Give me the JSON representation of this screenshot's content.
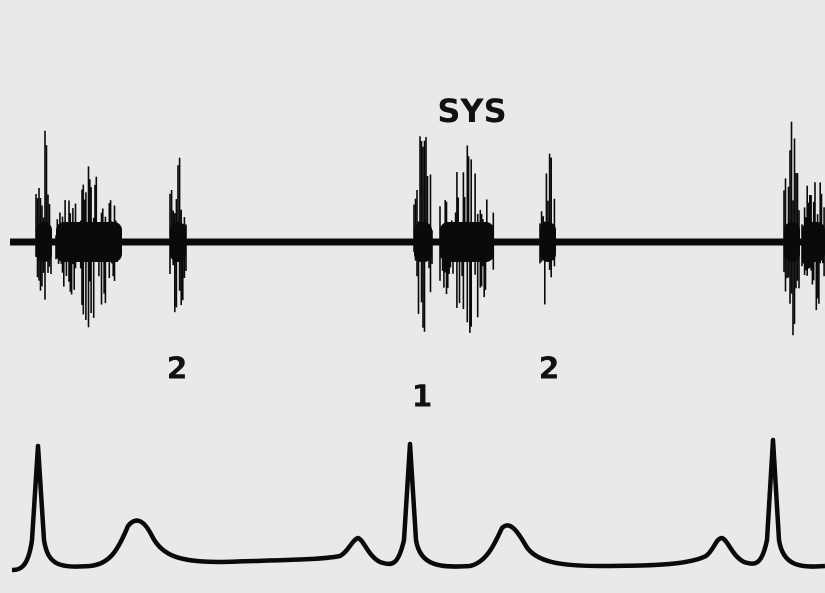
{
  "labels": [
    "SYS",
    "2",
    "1",
    "2"
  ]
}
